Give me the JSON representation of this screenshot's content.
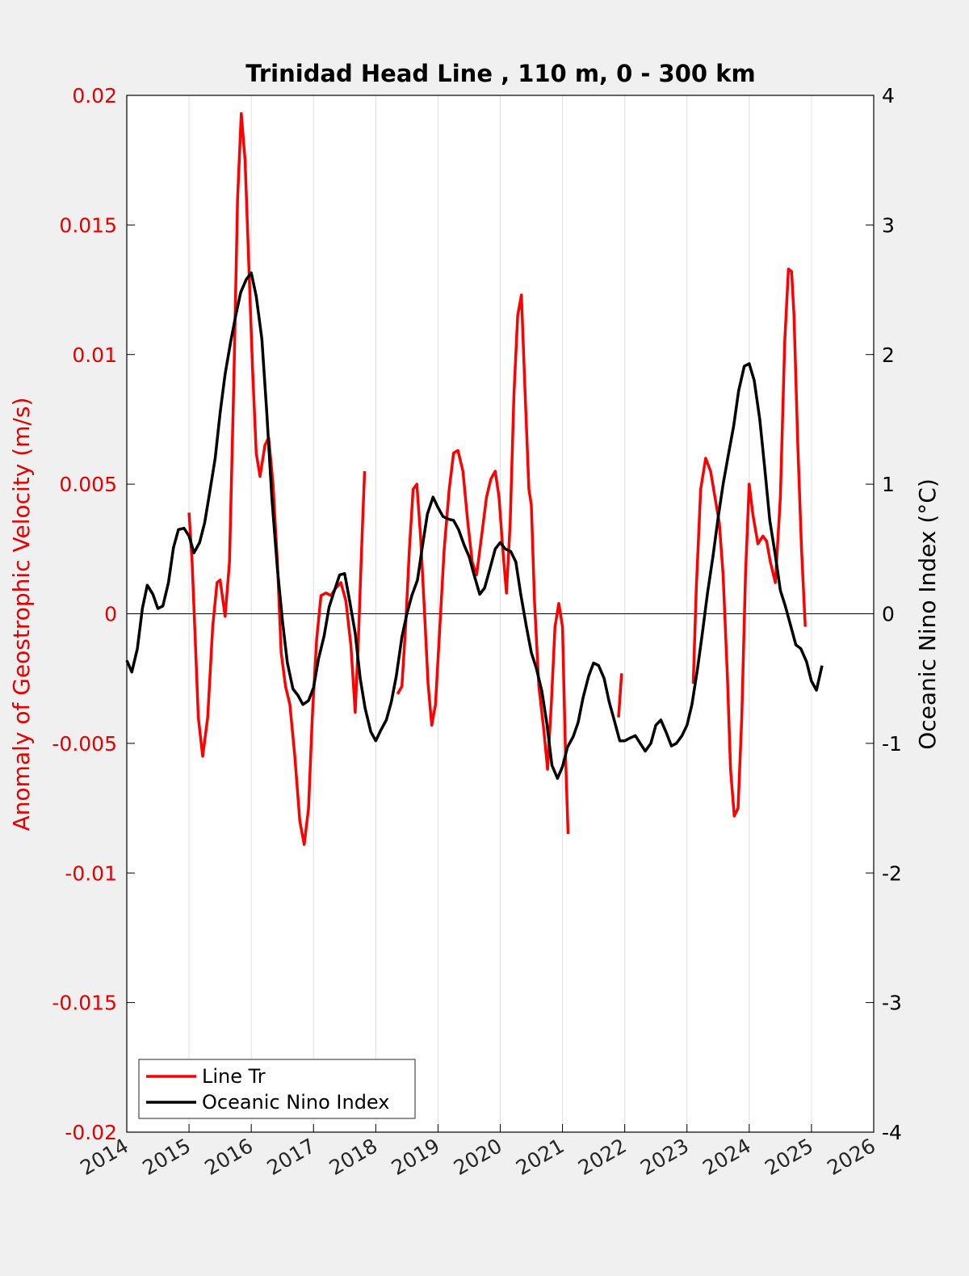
{
  "chart_data": {
    "type": "line",
    "title": "Trinidad Head Line , 110 m, 0 - 300 km",
    "xlabel": "",
    "ylabel": "Anomaly of Geostrophic Velocity (m/s)",
    "ylabel_right": "Oceanic Nino Index (°C)",
    "xlim": [
      2014,
      2026
    ],
    "ylim": [
      -0.02,
      0.02
    ],
    "ylim_right": [
      -4,
      4
    ],
    "x_ticks": [
      "2014",
      "2015",
      "2016",
      "2017",
      "2018",
      "2019",
      "2020",
      "2021",
      "2022",
      "2023",
      "2024",
      "2025",
      "2026"
    ],
    "y_ticks_left": [
      "-0.02",
      "-0.015",
      "-0.01",
      "-0.005",
      "0",
      "0.005",
      "0.01",
      "0.015",
      "0.02"
    ],
    "y_ticks_right": [
      "-4",
      "-3",
      "-2",
      "-1",
      "0",
      "1",
      "2",
      "3",
      "4"
    ],
    "grid": "vertical",
    "zero_line": true,
    "legend_position": "bottom-left",
    "colors": {
      "left_axis": "#e60000",
      "line_tr": "#ff0000",
      "oni": "#000000",
      "background": "#f0f0f0",
      "plot_bg": "#ffffff",
      "grid": "#e0e0e0"
    },
    "series": [
      {
        "name": "Line Tr",
        "axis": "left",
        "color": "#ff0000",
        "segments": [
          [
            [
              2015.0,
              0.0039
            ],
            [
              2015.05,
              0.002
            ],
            [
              2015.1,
              -0.001
            ],
            [
              2015.15,
              -0.004
            ],
            [
              2015.22,
              -0.0055
            ],
            [
              2015.3,
              -0.004
            ],
            [
              2015.38,
              -0.0005
            ],
            [
              2015.45,
              0.0012
            ],
            [
              2015.5,
              0.0013
            ],
            [
              2015.58,
              -0.0001
            ],
            [
              2015.65,
              0.002
            ],
            [
              2015.72,
              0.009
            ],
            [
              2015.78,
              0.016
            ],
            [
              2015.84,
              0.0193
            ],
            [
              2015.9,
              0.0175
            ],
            [
              2015.96,
              0.0135
            ],
            [
              2016.02,
              0.0095
            ],
            [
              2016.08,
              0.0062
            ],
            [
              2016.14,
              0.0053
            ],
            [
              2016.22,
              0.0065
            ],
            [
              2016.28,
              0.0068
            ],
            [
              2016.35,
              0.005
            ],
            [
              2016.42,
              0.002
            ],
            [
              2016.48,
              -0.0015
            ],
            [
              2016.55,
              -0.0028
            ],
            [
              2016.62,
              -0.0035
            ],
            [
              2016.7,
              -0.0055
            ],
            [
              2016.78,
              -0.008
            ],
            [
              2016.85,
              -0.0089
            ],
            [
              2016.92,
              -0.0075
            ],
            [
              2016.98,
              -0.004
            ],
            [
              2017.05,
              -0.001
            ],
            [
              2017.12,
              0.0007
            ],
            [
              2017.2,
              0.0008
            ],
            [
              2017.28,
              0.0007
            ],
            [
              2017.36,
              0.001
            ],
            [
              2017.44,
              0.0012
            ],
            [
              2017.52,
              0.0005
            ],
            [
              2017.6,
              -0.0012
            ],
            [
              2017.67,
              -0.0038
            ],
            [
              2017.72,
              -0.001
            ],
            [
              2017.78,
              0.003
            ],
            [
              2017.82,
              0.0055
            ]
          ],
          [
            [
              2018.35,
              -0.0031
            ],
            [
              2018.42,
              -0.0028
            ],
            [
              2018.48,
              -0.0005
            ],
            [
              2018.54,
              0.0025
            ],
            [
              2018.6,
              0.0048
            ],
            [
              2018.66,
              0.005
            ],
            [
              2018.72,
              0.003
            ],
            [
              2018.78,
              0.0002
            ],
            [
              2018.84,
              -0.0027
            ],
            [
              2018.9,
              -0.0043
            ],
            [
              2018.96,
              -0.0035
            ],
            [
              2019.03,
              -0.0005
            ],
            [
              2019.1,
              0.0025
            ],
            [
              2019.18,
              0.0048
            ],
            [
              2019.25,
              0.0062
            ],
            [
              2019.32,
              0.0063
            ],
            [
              2019.4,
              0.0055
            ],
            [
              2019.48,
              0.0035
            ],
            [
              2019.55,
              0.002
            ],
            [
              2019.62,
              0.0015
            ],
            [
              2019.7,
              0.003
            ],
            [
              2019.78,
              0.0045
            ],
            [
              2019.85,
              0.0052
            ],
            [
              2019.92,
              0.0055
            ],
            [
              2019.98,
              0.0045
            ],
            [
              2020.04,
              0.0025
            ],
            [
              2020.1,
              0.0008
            ],
            [
              2020.16,
              0.0035
            ],
            [
              2020.22,
              0.0085
            ],
            [
              2020.28,
              0.0115
            ],
            [
              2020.34,
              0.0123
            ],
            [
              2020.4,
              0.0085
            ],
            [
              2020.46,
              0.0048
            ],
            [
              2020.5,
              0.0042
            ],
            [
              2020.55,
              0.0005
            ],
            [
              2020.62,
              -0.0028
            ],
            [
              2020.7,
              -0.0045
            ],
            [
              2020.76,
              -0.006
            ],
            [
              2020.82,
              -0.0035
            ],
            [
              2020.88,
              -0.0005
            ],
            [
              2020.94,
              0.0004
            ],
            [
              2021.0,
              -0.0005
            ],
            [
              2021.05,
              -0.0055
            ],
            [
              2021.09,
              -0.0085
            ]
          ],
          [
            [
              2021.9,
              -0.004
            ],
            [
              2021.95,
              -0.0023
            ]
          ],
          [
            [
              2023.1,
              -0.0027
            ],
            [
              2023.15,
              0.001
            ],
            [
              2023.22,
              0.0048
            ],
            [
              2023.3,
              0.006
            ],
            [
              2023.38,
              0.0055
            ],
            [
              2023.45,
              0.0045
            ],
            [
              2023.52,
              0.0035
            ],
            [
              2023.58,
              0.0015
            ],
            [
              2023.65,
              -0.0025
            ],
            [
              2023.7,
              -0.006
            ],
            [
              2023.76,
              -0.0078
            ],
            [
              2023.82,
              -0.0075
            ],
            [
              2023.88,
              -0.004
            ],
            [
              2023.94,
              0.0015
            ],
            [
              2024.0,
              0.005
            ],
            [
              2024.06,
              0.0038
            ],
            [
              2024.14,
              0.0027
            ],
            [
              2024.22,
              0.003
            ],
            [
              2024.28,
              0.0028
            ],
            [
              2024.34,
              0.002
            ],
            [
              2024.42,
              0.0012
            ],
            [
              2024.5,
              0.0045
            ],
            [
              2024.57,
              0.0105
            ],
            [
              2024.63,
              0.0133
            ],
            [
              2024.68,
              0.0132
            ],
            [
              2024.72,
              0.0115
            ],
            [
              2024.78,
              0.0065
            ],
            [
              2024.84,
              0.0025
            ],
            [
              2024.9,
              -0.0005
            ]
          ]
        ]
      },
      {
        "name": "Oceanic Nino Index",
        "axis": "right",
        "color": "#000000",
        "segments": [
          [
            [
              2014.0,
              -0.36
            ],
            [
              2014.08,
              -0.45
            ],
            [
              2014.17,
              -0.27
            ],
            [
              2014.25,
              0.04
            ],
            [
              2014.33,
              0.22
            ],
            [
              2014.42,
              0.15
            ],
            [
              2014.5,
              0.04
            ],
            [
              2014.58,
              0.06
            ],
            [
              2014.67,
              0.24
            ],
            [
              2014.75,
              0.51
            ],
            [
              2014.83,
              0.65
            ],
            [
              2014.92,
              0.66
            ],
            [
              2015.0,
              0.6
            ],
            [
              2015.08,
              0.47
            ],
            [
              2015.17,
              0.55
            ],
            [
              2015.25,
              0.7
            ],
            [
              2015.33,
              0.93
            ],
            [
              2015.42,
              1.2
            ],
            [
              2015.5,
              1.55
            ],
            [
              2015.58,
              1.85
            ],
            [
              2015.67,
              2.1
            ],
            [
              2015.75,
              2.3
            ],
            [
              2015.83,
              2.48
            ],
            [
              2015.92,
              2.58
            ],
            [
              2016.0,
              2.63
            ],
            [
              2016.08,
              2.45
            ],
            [
              2016.17,
              2.12
            ],
            [
              2016.25,
              1.55
            ],
            [
              2016.33,
              0.9
            ],
            [
              2016.42,
              0.35
            ],
            [
              2016.5,
              -0.05
            ],
            [
              2016.58,
              -0.38
            ],
            [
              2016.67,
              -0.58
            ],
            [
              2016.75,
              -0.63
            ],
            [
              2016.83,
              -0.7
            ],
            [
              2016.92,
              -0.67
            ],
            [
              2017.0,
              -0.57
            ],
            [
              2017.08,
              -0.35
            ],
            [
              2017.17,
              -0.17
            ],
            [
              2017.25,
              0.05
            ],
            [
              2017.33,
              0.17
            ],
            [
              2017.42,
              0.3
            ],
            [
              2017.5,
              0.31
            ],
            [
              2017.58,
              0.1
            ],
            [
              2017.67,
              -0.15
            ],
            [
              2017.75,
              -0.5
            ],
            [
              2017.83,
              -0.73
            ],
            [
              2017.92,
              -0.91
            ],
            [
              2018.0,
              -0.98
            ],
            [
              2018.08,
              -0.9
            ],
            [
              2018.17,
              -0.82
            ],
            [
              2018.25,
              -0.68
            ],
            [
              2018.33,
              -0.48
            ],
            [
              2018.42,
              -0.18
            ],
            [
              2018.5,
              0.0
            ],
            [
              2018.58,
              0.14
            ],
            [
              2018.67,
              0.26
            ],
            [
              2018.75,
              0.52
            ],
            [
              2018.83,
              0.77
            ],
            [
              2018.92,
              0.9
            ],
            [
              2019.0,
              0.82
            ],
            [
              2019.08,
              0.75
            ],
            [
              2019.17,
              0.73
            ],
            [
              2019.25,
              0.72
            ],
            [
              2019.33,
              0.65
            ],
            [
              2019.42,
              0.53
            ],
            [
              2019.5,
              0.44
            ],
            [
              2019.58,
              0.3
            ],
            [
              2019.67,
              0.15
            ],
            [
              2019.75,
              0.2
            ],
            [
              2019.83,
              0.34
            ],
            [
              2019.92,
              0.5
            ],
            [
              2020.0,
              0.55
            ],
            [
              2020.08,
              0.5
            ],
            [
              2020.17,
              0.48
            ],
            [
              2020.25,
              0.4
            ],
            [
              2020.33,
              0.15
            ],
            [
              2020.42,
              -0.1
            ],
            [
              2020.5,
              -0.3
            ],
            [
              2020.58,
              -0.42
            ],
            [
              2020.67,
              -0.6
            ],
            [
              2020.75,
              -0.85
            ],
            [
              2020.83,
              -1.17
            ],
            [
              2020.92,
              -1.27
            ],
            [
              2021.0,
              -1.18
            ],
            [
              2021.08,
              -1.03
            ],
            [
              2021.17,
              -0.95
            ],
            [
              2021.25,
              -0.84
            ],
            [
              2021.33,
              -0.65
            ],
            [
              2021.42,
              -0.48
            ],
            [
              2021.5,
              -0.38
            ],
            [
              2021.58,
              -0.4
            ],
            [
              2021.67,
              -0.5
            ],
            [
              2021.75,
              -0.68
            ],
            [
              2021.83,
              -0.82
            ],
            [
              2021.92,
              -0.98
            ],
            [
              2022.0,
              -0.98
            ],
            [
              2022.08,
              -0.96
            ],
            [
              2022.17,
              -0.94
            ],
            [
              2022.25,
              -1.0
            ],
            [
              2022.33,
              -1.06
            ],
            [
              2022.42,
              -1.0
            ],
            [
              2022.5,
              -0.86
            ],
            [
              2022.58,
              -0.82
            ],
            [
              2022.67,
              -0.92
            ],
            [
              2022.75,
              -1.02
            ],
            [
              2022.83,
              -1.0
            ],
            [
              2022.92,
              -0.94
            ],
            [
              2023.0,
              -0.86
            ],
            [
              2023.08,
              -0.7
            ],
            [
              2023.17,
              -0.42
            ],
            [
              2023.25,
              -0.14
            ],
            [
              2023.33,
              0.16
            ],
            [
              2023.42,
              0.45
            ],
            [
              2023.5,
              0.74
            ],
            [
              2023.58,
              1.0
            ],
            [
              2023.67,
              1.24
            ],
            [
              2023.75,
              1.45
            ],
            [
              2023.83,
              1.72
            ],
            [
              2023.92,
              1.91
            ],
            [
              2024.0,
              1.93
            ],
            [
              2024.08,
              1.8
            ],
            [
              2024.17,
              1.5
            ],
            [
              2024.25,
              1.12
            ],
            [
              2024.33,
              0.72
            ],
            [
              2024.42,
              0.45
            ],
            [
              2024.5,
              0.18
            ],
            [
              2024.58,
              0.06
            ],
            [
              2024.67,
              -0.1
            ],
            [
              2024.75,
              -0.24
            ],
            [
              2024.83,
              -0.27
            ],
            [
              2024.92,
              -0.37
            ],
            [
              2025.0,
              -0.52
            ],
            [
              2025.08,
              -0.59
            ],
            [
              2025.17,
              -0.4
            ]
          ]
        ]
      }
    ]
  }
}
